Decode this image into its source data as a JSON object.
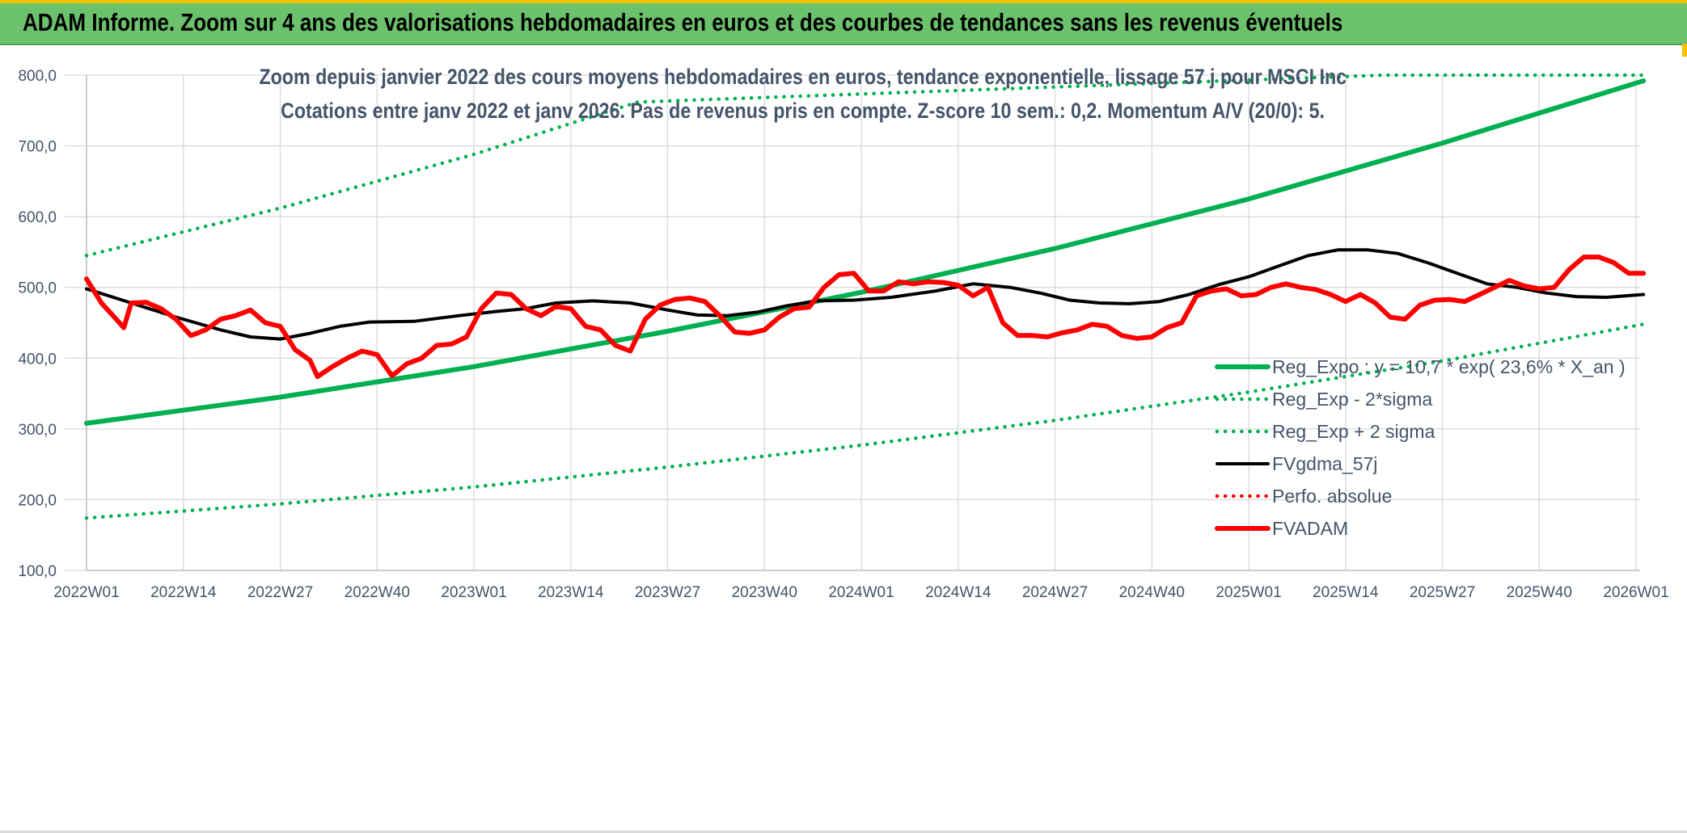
{
  "banner": {
    "title": "ADAM Informe. Zoom sur 4 ans des valorisations hebdomadaires en euros et des courbes de tendances sans les revenus éventuels"
  },
  "colors": {
    "banner": "#6cc26c",
    "trend": "#00b050",
    "smooth": "#000000",
    "price": "#ff0000",
    "axis_text": "#44546a",
    "grid": "#d9d9d9"
  },
  "chart_data": {
    "type": "line",
    "title": "Zoom depuis janvier 2022 des cours moyens hebdomadaires en euros, tendance exponentielle, lissage 57 j pour MSCI Inc",
    "subtitle": "Cotations entre janv 2022 et janv 2026. Pas de revenus pris en compte. Z-score 10 sem.: 0,2. Momentum A/V (20/0): 5.",
    "xlabel": "",
    "ylabel": "",
    "ylim": [
      100,
      800
    ],
    "yticks": [
      "100,0",
      "200,0",
      "300,0",
      "400,0",
      "500,0",
      "600,0",
      "700,0",
      "800,0"
    ],
    "x_range_weeks": [
      0,
      209
    ],
    "xticks": [
      {
        "week": 0,
        "label": "2022W01"
      },
      {
        "week": 13,
        "label": "2022W14"
      },
      {
        "week": 26,
        "label": "2022W27"
      },
      {
        "week": 39,
        "label": "2022W40"
      },
      {
        "week": 52,
        "label": "2023W01"
      },
      {
        "week": 65,
        "label": "2023W14"
      },
      {
        "week": 78,
        "label": "2023W27"
      },
      {
        "week": 91,
        "label": "2023W40"
      },
      {
        "week": 104,
        "label": "2024W01"
      },
      {
        "week": 117,
        "label": "2024W14"
      },
      {
        "week": 130,
        "label": "2024W27"
      },
      {
        "week": 143,
        "label": "2024W40"
      },
      {
        "week": 156,
        "label": "2025W01"
      },
      {
        "week": 169,
        "label": "2025W14"
      },
      {
        "week": 182,
        "label": "2025W27"
      },
      {
        "week": 195,
        "label": "2025W40"
      },
      {
        "week": 208,
        "label": "2026W01"
      }
    ],
    "grid": true,
    "legend_position": "bottom-right",
    "series": [
      {
        "name": "Reg_Expo : y = 10,7 * exp( 23,6% *  X_an )",
        "style": "solid-thick",
        "color": "#00b050",
        "points": [
          [
            0,
            308
          ],
          [
            26,
            345
          ],
          [
            52,
            388
          ],
          [
            78,
            438
          ],
          [
            104,
            493
          ],
          [
            130,
            555
          ],
          [
            156,
            625
          ],
          [
            182,
            704
          ],
          [
            209,
            792
          ]
        ]
      },
      {
        "name": "Reg_Exp - 2*sigma",
        "style": "dotted",
        "color": "#00b050",
        "points": [
          [
            0,
            174
          ],
          [
            26,
            194
          ],
          [
            52,
            218
          ],
          [
            78,
            246
          ],
          [
            104,
            277
          ],
          [
            130,
            312
          ],
          [
            156,
            352
          ],
          [
            182,
            396
          ],
          [
            209,
            448
          ]
        ]
      },
      {
        "name": "Reg_Exp + 2 sigma",
        "style": "dotted",
        "color": "#00b050",
        "points": [
          [
            0,
            545
          ],
          [
            26,
            612
          ],
          [
            52,
            688
          ],
          [
            74,
            762
          ],
          [
            174,
            800
          ],
          [
            209,
            800
          ]
        ]
      },
      {
        "name": "FVgdma_57j",
        "style": "solid",
        "color": "#000000",
        "points": [
          [
            0,
            498
          ],
          [
            6,
            478
          ],
          [
            12,
            458
          ],
          [
            18,
            440
          ],
          [
            22,
            430
          ],
          [
            26,
            427
          ],
          [
            30,
            435
          ],
          [
            34,
            445
          ],
          [
            38,
            451
          ],
          [
            44,
            452
          ],
          [
            50,
            460
          ],
          [
            55,
            466
          ],
          [
            59,
            470
          ],
          [
            63,
            478
          ],
          [
            68,
            481
          ],
          [
            73,
            478
          ],
          [
            78,
            468
          ],
          [
            82,
            461
          ],
          [
            86,
            460
          ],
          [
            90,
            465
          ],
          [
            94,
            474
          ],
          [
            98,
            481
          ],
          [
            103,
            482
          ],
          [
            108,
            486
          ],
          [
            114,
            495
          ],
          [
            119,
            505
          ],
          [
            124,
            500
          ],
          [
            128,
            492
          ],
          [
            132,
            482
          ],
          [
            136,
            478
          ],
          [
            140,
            477
          ],
          [
            144,
            480
          ],
          [
            148,
            490
          ],
          [
            152,
            504
          ],
          [
            156,
            515
          ],
          [
            160,
            530
          ],
          [
            164,
            545
          ],
          [
            168,
            553
          ],
          [
            172,
            553
          ],
          [
            176,
            548
          ],
          [
            180,
            535
          ],
          [
            184,
            520
          ],
          [
            188,
            505
          ],
          [
            192,
            500
          ],
          [
            196,
            492
          ],
          [
            200,
            487
          ],
          [
            204,
            486
          ],
          [
            209,
            490
          ]
        ]
      },
      {
        "name": "Perfo. absolue",
        "style": "dotted",
        "color": "#ff0000",
        "points": []
      },
      {
        "name": "FVADAM",
        "style": "solid-thick",
        "color": "#ff0000",
        "points": [
          [
            0,
            512
          ],
          [
            2,
            478
          ],
          [
            4,
            455
          ],
          [
            5,
            443
          ],
          [
            6,
            478
          ],
          [
            8,
            479
          ],
          [
            10,
            470
          ],
          [
            12,
            455
          ],
          [
            14,
            432
          ],
          [
            16,
            440
          ],
          [
            18,
            455
          ],
          [
            20,
            460
          ],
          [
            22,
            468
          ],
          [
            24,
            450
          ],
          [
            26,
            445
          ],
          [
            28,
            412
          ],
          [
            30,
            397
          ],
          [
            31,
            374
          ],
          [
            33,
            388
          ],
          [
            35,
            400
          ],
          [
            37,
            410
          ],
          [
            39,
            405
          ],
          [
            41,
            375
          ],
          [
            43,
            392
          ],
          [
            45,
            400
          ],
          [
            47,
            418
          ],
          [
            49,
            420
          ],
          [
            51,
            430
          ],
          [
            53,
            470
          ],
          [
            55,
            492
          ],
          [
            57,
            490
          ],
          [
            59,
            470
          ],
          [
            61,
            460
          ],
          [
            63,
            473
          ],
          [
            65,
            470
          ],
          [
            67,
            445
          ],
          [
            69,
            440
          ],
          [
            71,
            418
          ],
          [
            73,
            410
          ],
          [
            75,
            455
          ],
          [
            77,
            475
          ],
          [
            79,
            483
          ],
          [
            81,
            485
          ],
          [
            83,
            480
          ],
          [
            85,
            460
          ],
          [
            87,
            437
          ],
          [
            89,
            435
          ],
          [
            91,
            440
          ],
          [
            93,
            458
          ],
          [
            95,
            470
          ],
          [
            97,
            472
          ],
          [
            99,
            500
          ],
          [
            101,
            518
          ],
          [
            103,
            520
          ],
          [
            105,
            495
          ],
          [
            107,
            495
          ],
          [
            109,
            508
          ],
          [
            111,
            505
          ],
          [
            113,
            508
          ],
          [
            115,
            507
          ],
          [
            117,
            503
          ],
          [
            119,
            488
          ],
          [
            121,
            500
          ],
          [
            123,
            450
          ],
          [
            125,
            432
          ],
          [
            127,
            432
          ],
          [
            129,
            430
          ],
          [
            131,
            436
          ],
          [
            133,
            440
          ],
          [
            135,
            448
          ],
          [
            137,
            445
          ],
          [
            139,
            432
          ],
          [
            141,
            428
          ],
          [
            143,
            430
          ],
          [
            145,
            443
          ],
          [
            147,
            450
          ],
          [
            149,
            488
          ],
          [
            151,
            495
          ],
          [
            153,
            498
          ],
          [
            155,
            488
          ],
          [
            157,
            490
          ],
          [
            159,
            500
          ],
          [
            161,
            505
          ],
          [
            163,
            500
          ],
          [
            165,
            497
          ],
          [
            167,
            490
          ],
          [
            169,
            480
          ],
          [
            171,
            490
          ],
          [
            173,
            478
          ],
          [
            175,
            458
          ],
          [
            177,
            455
          ],
          [
            179,
            475
          ],
          [
            181,
            482
          ],
          [
            183,
            483
          ],
          [
            185,
            480
          ],
          [
            187,
            490
          ],
          [
            189,
            500
          ],
          [
            191,
            510
          ],
          [
            193,
            502
          ],
          [
            195,
            498
          ],
          [
            197,
            500
          ],
          [
            199,
            525
          ],
          [
            201,
            543
          ],
          [
            203,
            543
          ],
          [
            205,
            535
          ],
          [
            207,
            520
          ],
          [
            209,
            520
          ]
        ]
      }
    ]
  },
  "legend": [
    {
      "label": "Reg_Expo : y = 10,7 * exp( 23,6% *  X_an )",
      "style": "solid-thick",
      "color": "#00b050"
    },
    {
      "label": "Reg_Exp - 2*sigma",
      "style": "dotted",
      "color": "#00b050"
    },
    {
      "label": "Reg_Exp + 2 sigma",
      "style": "dotted",
      "color": "#00b050"
    },
    {
      "label": "FVgdma_57j",
      "style": "solid",
      "color": "#000000"
    },
    {
      "label": "Perfo. absolue",
      "style": "dotted",
      "color": "#ff0000"
    },
    {
      "label": "FVADAM",
      "style": "solid-thick",
      "color": "#ff0000"
    }
  ]
}
